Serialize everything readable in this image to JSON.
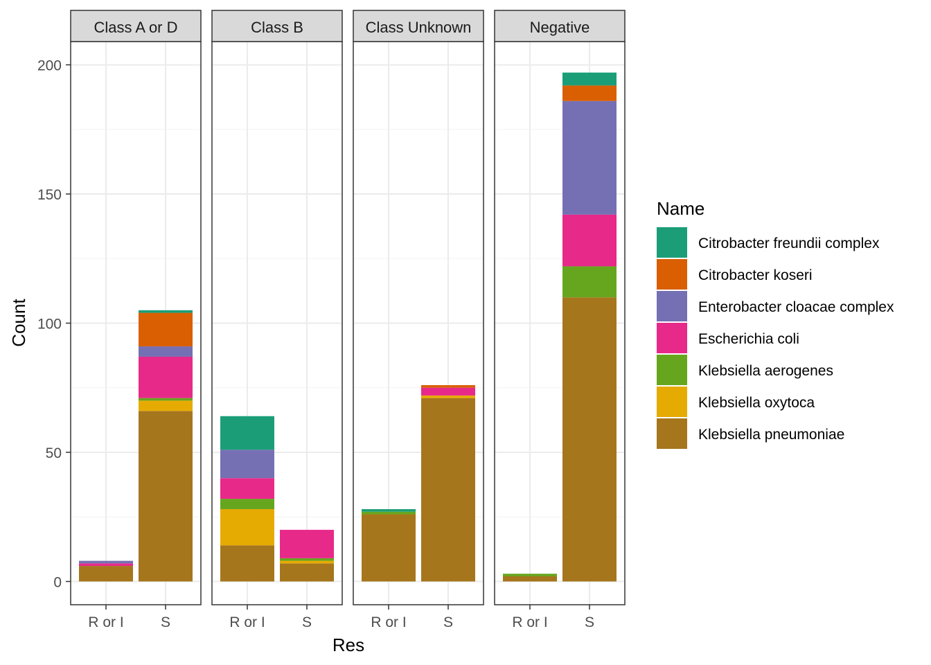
{
  "chart_data": {
    "type": "bar",
    "stacked": true,
    "facet_labels": [
      "Class A or D",
      "Class B",
      "Class Unknown",
      "Negative"
    ],
    "categories": [
      "R or I",
      "S"
    ],
    "xlabel": "Res",
    "ylabel": "Count",
    "ylim": [
      -9,
      209
    ],
    "yticks": [
      0,
      50,
      100,
      150,
      200
    ],
    "grid": true,
    "legend": {
      "title": "Name",
      "position": "right"
    },
    "species": [
      {
        "name": "Citrobacter freundii complex",
        "color": "#1B9E77"
      },
      {
        "name": "Citrobacter koseri",
        "color": "#D95F02"
      },
      {
        "name": "Enterobacter cloacae complex",
        "color": "#7570B3"
      },
      {
        "name": "Escherichia coli",
        "color": "#E7298A"
      },
      {
        "name": "Klebsiella aerogenes",
        "color": "#66A61E"
      },
      {
        "name": "Klebsiella oxytoca",
        "color": "#E6AB02"
      },
      {
        "name": "Klebsiella pneumoniae",
        "color": "#A6761D"
      }
    ],
    "panels": [
      {
        "label": "Class A or D",
        "bars": [
          {
            "category": "R or I",
            "counts": [
              0,
              0,
              1,
              1,
              0,
              0,
              6
            ]
          },
          {
            "category": "S",
            "counts": [
              1,
              13,
              4,
              16,
              1,
              4,
              66
            ]
          }
        ]
      },
      {
        "label": "Class B",
        "bars": [
          {
            "category": "R or I",
            "counts": [
              13,
              0,
              11,
              8,
              4,
              14,
              14
            ]
          },
          {
            "category": "S",
            "counts": [
              0,
              0,
              0,
              11,
              1,
              1,
              7
            ]
          }
        ]
      },
      {
        "label": "Class Unknown",
        "bars": [
          {
            "category": "R or I",
            "counts": [
              1,
              0,
              0,
              0,
              1,
              0,
              26
            ]
          },
          {
            "category": "S",
            "counts": [
              0,
              1,
              0,
              3,
              0,
              1,
              71
            ]
          }
        ]
      },
      {
        "label": "Negative",
        "bars": [
          {
            "category": "R or I",
            "counts": [
              0,
              0,
              0,
              0,
              1,
              0,
              2
            ]
          },
          {
            "category": "S",
            "counts": [
              5,
              6,
              44,
              20,
              12,
              0,
              110
            ]
          }
        ]
      }
    ]
  }
}
